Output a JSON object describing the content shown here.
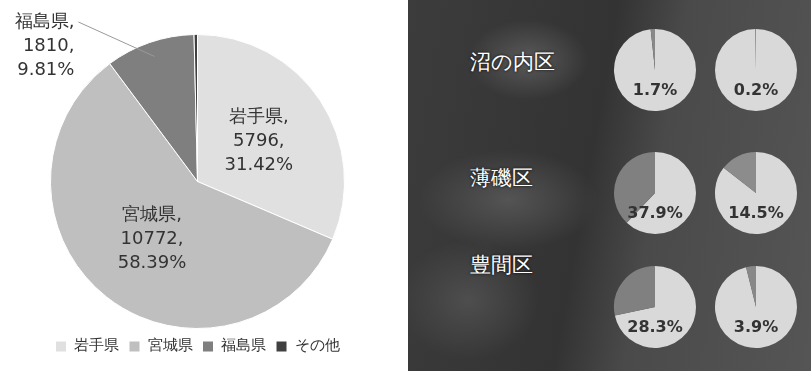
{
  "chart_data": [
    {
      "type": "pie",
      "categories": [
        "岩手県",
        "宮城県",
        "福島県",
        "その他"
      ],
      "values": [
        5796,
        10772,
        1810,
        69
      ],
      "value_labels": [
        [
          "岩手県,",
          "5796,",
          "31.42%"
        ],
        [
          "宮城県,",
          "10772,",
          "58.39%"
        ],
        [
          "福島県,",
          "1810,",
          "9.81%"
        ],
        null
      ],
      "colors": [
        "#e0e0e0",
        "#bfbfbf",
        "#7f7f7f",
        "#404040"
      ],
      "data_labels": true,
      "legend": "bottom"
    },
    {
      "type": "pie",
      "title": "沼の内区",
      "values": [
        98.3,
        1.7
      ],
      "value_labels": [
        null,
        "1.7%"
      ],
      "colors": [
        "#d9d9d9",
        "#888888"
      ],
      "data_labels": true
    },
    {
      "type": "pie",
      "values": [
        99.8,
        0.2
      ],
      "value_labels": [
        null,
        "0.2%"
      ],
      "colors": [
        "#d9d9d9",
        "#888888"
      ],
      "data_labels": true
    },
    {
      "type": "pie",
      "title": "薄磯区",
      "values": [
        62.1,
        37.9
      ],
      "value_labels": [
        null,
        "37.9%"
      ],
      "colors": [
        "#d9d9d9",
        "#808080"
      ],
      "data_labels": true
    },
    {
      "type": "pie",
      "values": [
        85.5,
        14.5
      ],
      "value_labels": [
        null,
        "14.5%"
      ],
      "colors": [
        "#d9d9d9",
        "#8c8c8c"
      ],
      "data_labels": true
    },
    {
      "type": "pie",
      "title": "豊間区",
      "values": [
        71.7,
        28.3
      ],
      "value_labels": [
        null,
        "28.3%"
      ],
      "colors": [
        "#d9d9d9",
        "#808080"
      ],
      "data_labels": true
    },
    {
      "type": "pie",
      "values": [
        96.1,
        3.9
      ],
      "value_labels": [
        null,
        "3.9%"
      ],
      "colors": [
        "#d9d9d9",
        "#888888"
      ],
      "data_labels": true
    }
  ]
}
